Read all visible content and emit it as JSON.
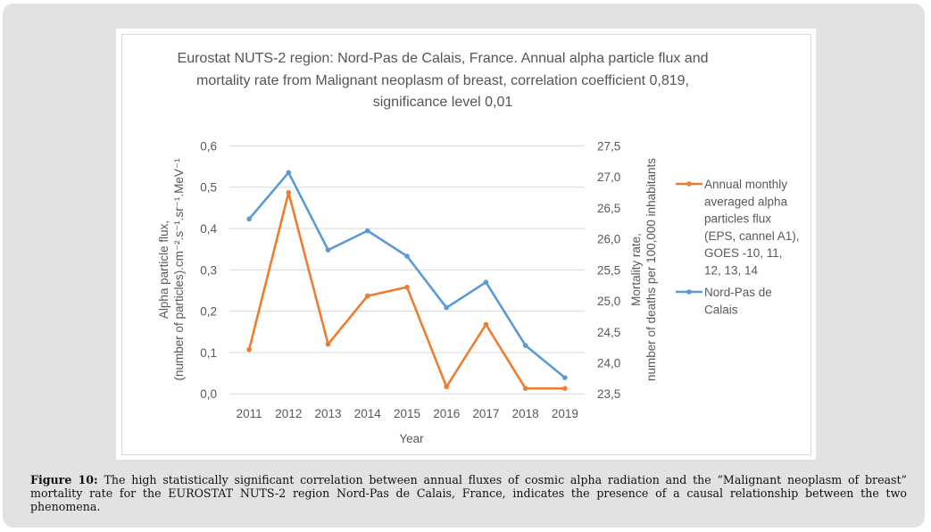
{
  "figure": {
    "caption_label": "Figure 10:",
    "caption_text": " The high statistically significant correlation between annual fluxes of cosmic alpha radiation and the “Malignant neoplasm of breast” mortality rate for the EUROSTAT NUTS-2 region Nord-Pas de Calais, France, indicates the presence of a causal relationship between the two phenomena."
  },
  "chart_data": {
    "type": "line",
    "title_lines": [
      "Eurostat NUTS-2 region: Nord-Pas de Calais, France. Annual alpha particle flux and",
      "mortality rate from Malignant neoplasm of breast, correlation coefficient 0,819,",
      "significance level 0,01"
    ],
    "xlabel": "Year",
    "categories": [
      "2011",
      "2012",
      "2013",
      "2014",
      "2015",
      "2016",
      "2017",
      "2018",
      "2019"
    ],
    "y_left": {
      "label_lines": [
        "Alpha particle flux,",
        "(number of particles).cm⁻².s⁻¹.sr⁻¹.MeV⁻¹"
      ],
      "range": [
        0.0,
        0.6
      ],
      "ticks": [
        "0,0",
        "0,1",
        "0,2",
        "0,3",
        "0,4",
        "0,5",
        "0,6"
      ]
    },
    "y_right": {
      "label_lines": [
        "Mortality rate,",
        "number of deaths per 100,000 inhabitants"
      ],
      "range": [
        23.5,
        27.5
      ],
      "ticks": [
        "23,5",
        "24,0",
        "24,5",
        "25,0",
        "25,5",
        "26,0",
        "26,5",
        "27,0",
        "27,5"
      ]
    },
    "grid": true,
    "legend_position": "right",
    "series": [
      {
        "name": "Annual monthly averaged alpha particles flux (EPS, cannel A1), GOES -10, 11, 12, 13, 14",
        "legend_lines": [
          "Annual monthly",
          "averaged alpha",
          "particles flux",
          "(EPS, cannel A1),",
          "GOES -10, 11,",
          "12, 13, 14"
        ],
        "axis": "left",
        "color": "#ED7D31",
        "values": [
          0.107,
          0.487,
          0.12,
          0.237,
          0.258,
          0.017,
          0.168,
          0.013,
          0.013
        ]
      },
      {
        "name": "Nord-Pas de Calais",
        "legend_lines": [
          "Nord-Pas de",
          "Calais"
        ],
        "axis": "right",
        "color": "#5B9BD5",
        "values": [
          26.32,
          27.07,
          25.82,
          26.13,
          25.72,
          24.89,
          25.3,
          24.28,
          23.76
        ]
      }
    ]
  }
}
